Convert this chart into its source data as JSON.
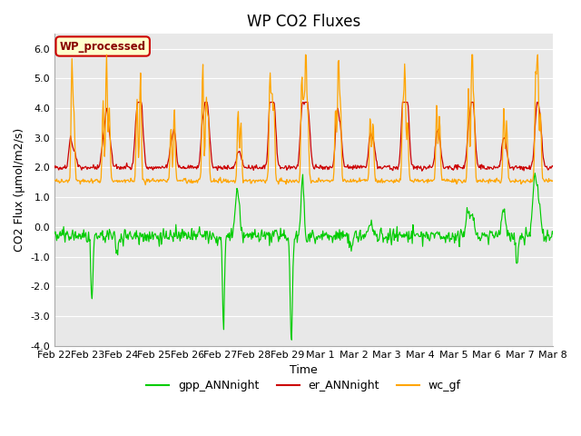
{
  "title": "WP CO2 Fluxes",
  "xlabel": "Time",
  "ylabel": "CO2 Flux (μmol/m2/s)",
  "ylim": [
    -4.0,
    6.5
  ],
  "yticks": [
    -4.0,
    -3.0,
    -2.0,
    -1.0,
    0.0,
    1.0,
    2.0,
    3.0,
    4.0,
    5.0,
    6.0
  ],
  "xtick_labels": [
    "Feb 22",
    "Feb 23",
    "Feb 24",
    "Feb 25",
    "Feb 26",
    "Feb 27",
    "Feb 28",
    "Feb 29",
    "Mar 1",
    "Mar 2",
    "Mar 3",
    "Mar 4",
    "Mar 5",
    "Mar 6",
    "Mar 7",
    "Mar 8"
  ],
  "n_days": 15,
  "points_per_day": 48,
  "gpp_color": "#00CC00",
  "er_color": "#CC0000",
  "wc_color": "#FFA500",
  "legend_label_gpp": "gpp_ANNnight",
  "legend_label_er": "er_ANNnight",
  "legend_label_wc": "wc_gf",
  "annotation_text": "WP_processed",
  "annotation_bg": "#FFFFCC",
  "annotation_border": "#CC0000",
  "annotation_text_color": "#880000",
  "background_color": "#E8E8E8",
  "grid_color": "white",
  "title_fontsize": 12,
  "axis_label_fontsize": 9,
  "tick_fontsize": 8,
  "legend_fontsize": 9,
  "seed": 42
}
